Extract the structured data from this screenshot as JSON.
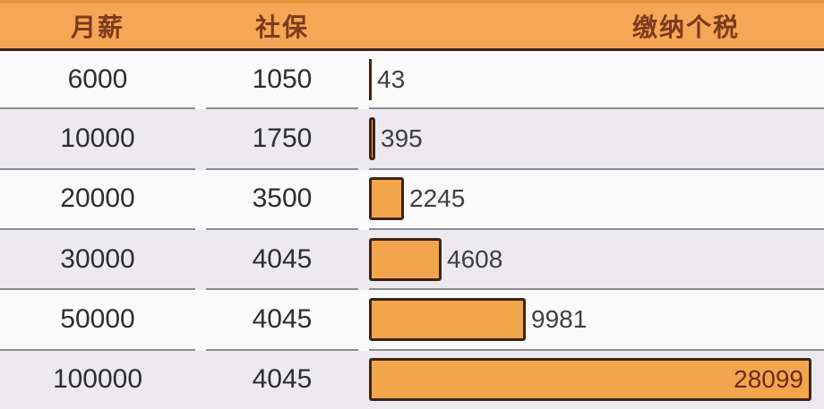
{
  "table": {
    "columns": [
      {
        "id": "salary",
        "label": "月薪"
      },
      {
        "id": "social",
        "label": "社保"
      },
      {
        "id": "tax",
        "label": "缴纳个税"
      }
    ],
    "rows": [
      {
        "salary": "6000",
        "social": "1050",
        "tax": 43,
        "tax_label": "43"
      },
      {
        "salary": "10000",
        "social": "1750",
        "tax": 395,
        "tax_label": "395"
      },
      {
        "salary": "20000",
        "social": "3500",
        "tax": 2245,
        "tax_label": "2245"
      },
      {
        "salary": "30000",
        "social": "4045",
        "tax": 4608,
        "tax_label": "4608"
      },
      {
        "salary": "50000",
        "social": "4045",
        "tax": 9981,
        "tax_label": "9981"
      },
      {
        "salary": "100000",
        "social": "4045",
        "tax": 28099,
        "tax_label": "28099"
      }
    ]
  },
  "chart_data": {
    "type": "bar",
    "orientation": "horizontal",
    "title": "",
    "columns": [
      "月薪",
      "社保",
      "缴纳个税"
    ],
    "categories": [
      "6000",
      "10000",
      "20000",
      "30000",
      "50000",
      "100000"
    ],
    "series": [
      {
        "name": "社保",
        "values": [
          1050,
          1750,
          3500,
          4045,
          4045,
          4045
        ]
      },
      {
        "name": "缴纳个税",
        "values": [
          43,
          395,
          2245,
          4608,
          9981,
          28099
        ]
      }
    ],
    "bar_series": "缴纳个税",
    "xlim": [
      0,
      28099
    ],
    "grid": false,
    "legend": false,
    "notes": "table with inline horizontal bars; bar lengths proportional to 缴纳个税 values; max bar labeled inside"
  },
  "colors": {
    "header_bg": "#f5a755",
    "header_top_edge": "#e8963f",
    "header_text": "#7e3a1c",
    "header_underline": "#3b241a",
    "row_white": "#fbfafb",
    "row_gray": "#eceaee",
    "separator": "#8c8c8c",
    "bar_fill": "#f3a54e",
    "bar_border": "#3c2517",
    "bar_label": "#3f3e41",
    "bar_label_inside": "#6b2c15",
    "cell_text": "#2d2d2f"
  }
}
